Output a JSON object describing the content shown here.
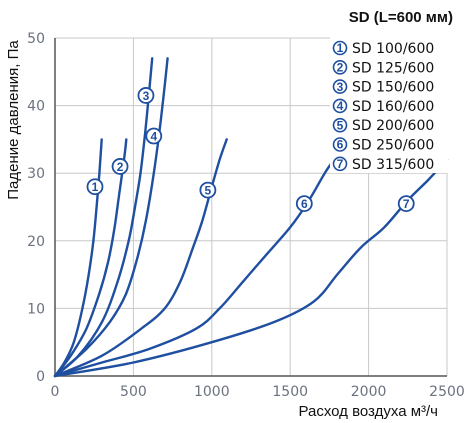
{
  "chart_data": {
    "type": "line",
    "title": "SD (L=600 мм)",
    "xlabel": "Расход воздуха м³/ч",
    "ylabel": "Падение давления, Па",
    "xlim": [
      0,
      2500
    ],
    "ylim": [
      0,
      50
    ],
    "xticks": [
      "0",
      "500",
      "1000",
      "1500",
      "2000",
      "2500"
    ],
    "yticks": [
      "0",
      "10",
      "20",
      "30",
      "40",
      "50"
    ],
    "grid": true,
    "legend_position": "top-right",
    "line_color": "#1f4fa0",
    "series": [
      {
        "name": "SD 100/600",
        "marker": "1",
        "marker_at": [
          255,
          28
        ],
        "points": [
          [
            0,
            0
          ],
          [
            60,
            2
          ],
          [
            120,
            5
          ],
          [
            175,
            10
          ],
          [
            215,
            15
          ],
          [
            245,
            20
          ],
          [
            265,
            25
          ],
          [
            283,
            30
          ],
          [
            298,
            35
          ]
        ]
      },
      {
        "name": "SD 125/600",
        "marker": "2",
        "marker_at": [
          415,
          31
        ],
        "points": [
          [
            0,
            0
          ],
          [
            100,
            3
          ],
          [
            200,
            7
          ],
          [
            280,
            12
          ],
          [
            340,
            17
          ],
          [
            380,
            22
          ],
          [
            410,
            27
          ],
          [
            440,
            32
          ],
          [
            455,
            35
          ]
        ]
      },
      {
        "name": "SD 150/600",
        "marker": "3",
        "marker_at": [
          580,
          41.5
        ],
        "points": [
          [
            0,
            0
          ],
          [
            150,
            3
          ],
          [
            300,
            8
          ],
          [
            400,
            14
          ],
          [
            470,
            20
          ],
          [
            510,
            25
          ],
          [
            545,
            30
          ],
          [
            575,
            36
          ],
          [
            600,
            42
          ],
          [
            620,
            47
          ]
        ]
      },
      {
        "name": "SD 160/600",
        "marker": "4",
        "marker_at": [
          630,
          35.5
        ],
        "points": [
          [
            0,
            0
          ],
          [
            200,
            4
          ],
          [
            350,
            8
          ],
          [
            450,
            12
          ],
          [
            520,
            17
          ],
          [
            580,
            23
          ],
          [
            630,
            30
          ],
          [
            665,
            36
          ],
          [
            695,
            42
          ],
          [
            718,
            47
          ]
        ]
      },
      {
        "name": "SD 200/600",
        "marker": "5",
        "marker_at": [
          975,
          27.5
        ],
        "points": [
          [
            0,
            0
          ],
          [
            300,
            3
          ],
          [
            550,
            7
          ],
          [
            700,
            10
          ],
          [
            800,
            14
          ],
          [
            880,
            19
          ],
          [
            940,
            23
          ],
          [
            1000,
            28
          ],
          [
            1050,
            32
          ],
          [
            1095,
            35
          ]
        ]
      },
      {
        "name": "SD 250/600",
        "marker": "6",
        "marker_at": [
          1590,
          25.5
        ],
        "points": [
          [
            0,
            0
          ],
          [
            300,
            2
          ],
          [
            600,
            4
          ],
          [
            900,
            7
          ],
          [
            1050,
            10
          ],
          [
            1200,
            14
          ],
          [
            1350,
            18
          ],
          [
            1500,
            22
          ],
          [
            1620,
            26
          ],
          [
            1720,
            30
          ],
          [
            1780,
            32
          ]
        ]
      },
      {
        "name": "SD 315/600",
        "marker": "7",
        "marker_at": [
          2240,
          25.5
        ],
        "points": [
          [
            0,
            0
          ],
          [
            500,
            2
          ],
          [
            1000,
            5
          ],
          [
            1400,
            8
          ],
          [
            1650,
            11
          ],
          [
            1800,
            15
          ],
          [
            1950,
            19
          ],
          [
            2100,
            22
          ],
          [
            2250,
            26
          ],
          [
            2380,
            29
          ],
          [
            2500,
            32
          ]
        ]
      }
    ]
  }
}
